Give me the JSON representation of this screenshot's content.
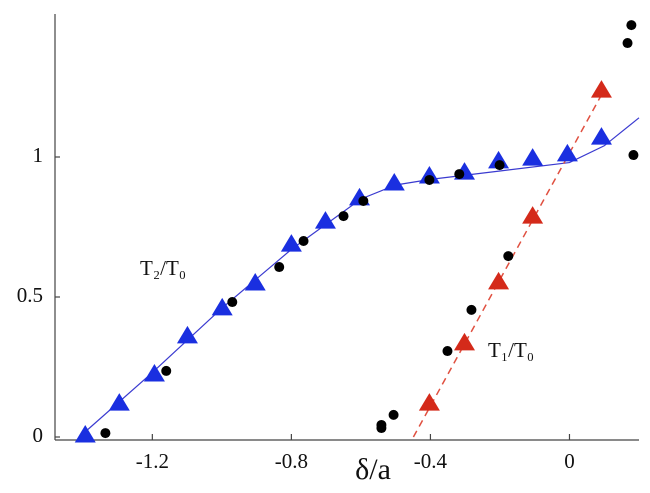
{
  "chart_data": {
    "type": "scatter",
    "x_label": "δ/a",
    "annotations": [
      "T₂/T₀",
      "T₁/T₀"
    ],
    "xlim": [
      -1.48,
      0.2
    ],
    "ylim": [
      0,
      1.5
    ],
    "xticks": [
      -1.2,
      -0.8,
      -0.4,
      0
    ],
    "yticks": [
      0,
      0.5,
      1
    ],
    "series": [
      {
        "marker": "line",
        "color": "#3a3ad0",
        "dash": false,
        "x": [
          -1.41,
          -1.2,
          -1.0,
          -0.8,
          -0.6,
          -0.5,
          -0.4,
          -0.2,
          0,
          0.1,
          0.2
        ],
        "values": [
          0,
          0.23,
          0.46,
          0.67,
          0.85,
          0.9,
          0.92,
          0.95,
          0.98,
          1.04,
          1.14
        ]
      },
      {
        "marker": "line",
        "color": "#e05040",
        "dash": true,
        "x": [
          -0.449,
          0.1
        ],
        "values": [
          0,
          1.24
        ]
      },
      {
        "marker": "triangle",
        "color": "#1a2fe0",
        "x": [
          -1.393,
          -1.295,
          -1.194,
          -1.099,
          -0.999,
          -0.904,
          -0.8,
          -0.702,
          -0.604,
          -0.504,
          -0.403,
          -0.302,
          -0.204,
          -0.106,
          -0.006,
          0.092
        ],
        "values": [
          0.007,
          0.121,
          0.225,
          0.361,
          0.461,
          0.55,
          0.689,
          0.771,
          0.854,
          0.907,
          0.932,
          0.946,
          0.986,
          0.996,
          1.011,
          1.071
        ]
      },
      {
        "marker": "triangle",
        "color": "#d42a1a",
        "x": [
          -0.403,
          -0.302,
          -0.204,
          -0.106,
          0.092
        ],
        "values": [
          0.121,
          0.336,
          0.554,
          0.789,
          1.239
        ]
      },
      {
        "marker": "dot",
        "color": "#000000",
        "x": [
          -1.335,
          -1.16,
          -0.97,
          -0.835,
          -0.765,
          -0.65,
          -0.593,
          -0.403,
          -0.317,
          -0.201,
          -0.541,
          -0.541,
          -0.506,
          -0.351,
          -0.282,
          -0.176,
          0.167,
          0.178,
          0.184
        ],
        "values": [
          0.014,
          0.236,
          0.482,
          0.607,
          0.7,
          0.789,
          0.843,
          0.918,
          0.939,
          0.971,
          0.043,
          0.032,
          0.079,
          0.307,
          0.454,
          0.646,
          1.407,
          1.471,
          1.007
        ]
      }
    ]
  }
}
